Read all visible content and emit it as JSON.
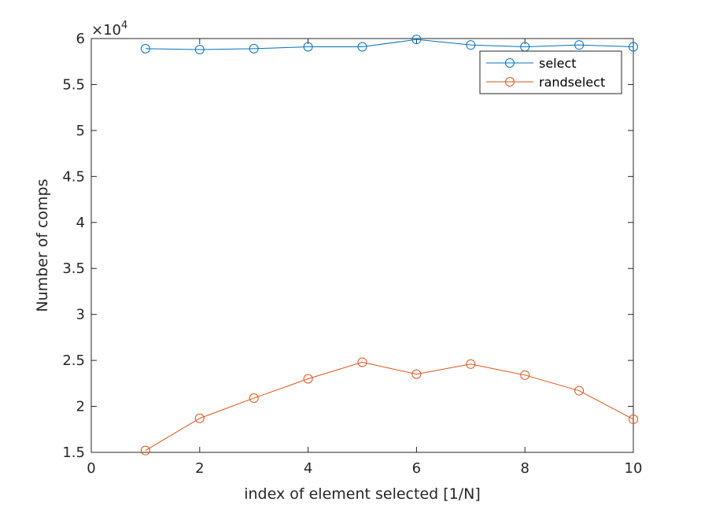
{
  "chart_data": {
    "type": "line",
    "title": "",
    "xlabel": "index of element selected [1/N]",
    "ylabel": "Number of comps",
    "exponent_label": {
      "base": "×10",
      "power": "4"
    },
    "xlim": [
      0,
      10
    ],
    "ylim": [
      1.5,
      6
    ],
    "xticks": [
      0,
      2,
      4,
      6,
      8,
      10
    ],
    "xtick_labels": [
      "0",
      "2",
      "4",
      "6",
      "8",
      "10"
    ],
    "yticks": [
      1.5,
      2,
      2.5,
      3,
      3.5,
      4,
      4.5,
      5,
      5.5,
      6
    ],
    "ytick_labels": [
      "1.5",
      "2",
      "2.5",
      "3",
      "3.5",
      "4",
      "4.5",
      "5",
      "5.5",
      "6"
    ],
    "grid": false,
    "legend_position": "top-right",
    "x": [
      1,
      2,
      3,
      4,
      5,
      6,
      7,
      8,
      9,
      10
    ],
    "series": [
      {
        "name": "select",
        "color": "#0072BD",
        "marker": "circle",
        "values": [
          5.89,
          5.88,
          5.89,
          5.91,
          5.91,
          5.99,
          5.93,
          5.91,
          5.93,
          5.91
        ]
      },
      {
        "name": "randselect",
        "color": "#D95319",
        "marker": "circle",
        "values": [
          1.52,
          1.87,
          2.09,
          2.3,
          2.48,
          2.35,
          2.46,
          2.34,
          2.17,
          1.86
        ]
      }
    ]
  }
}
